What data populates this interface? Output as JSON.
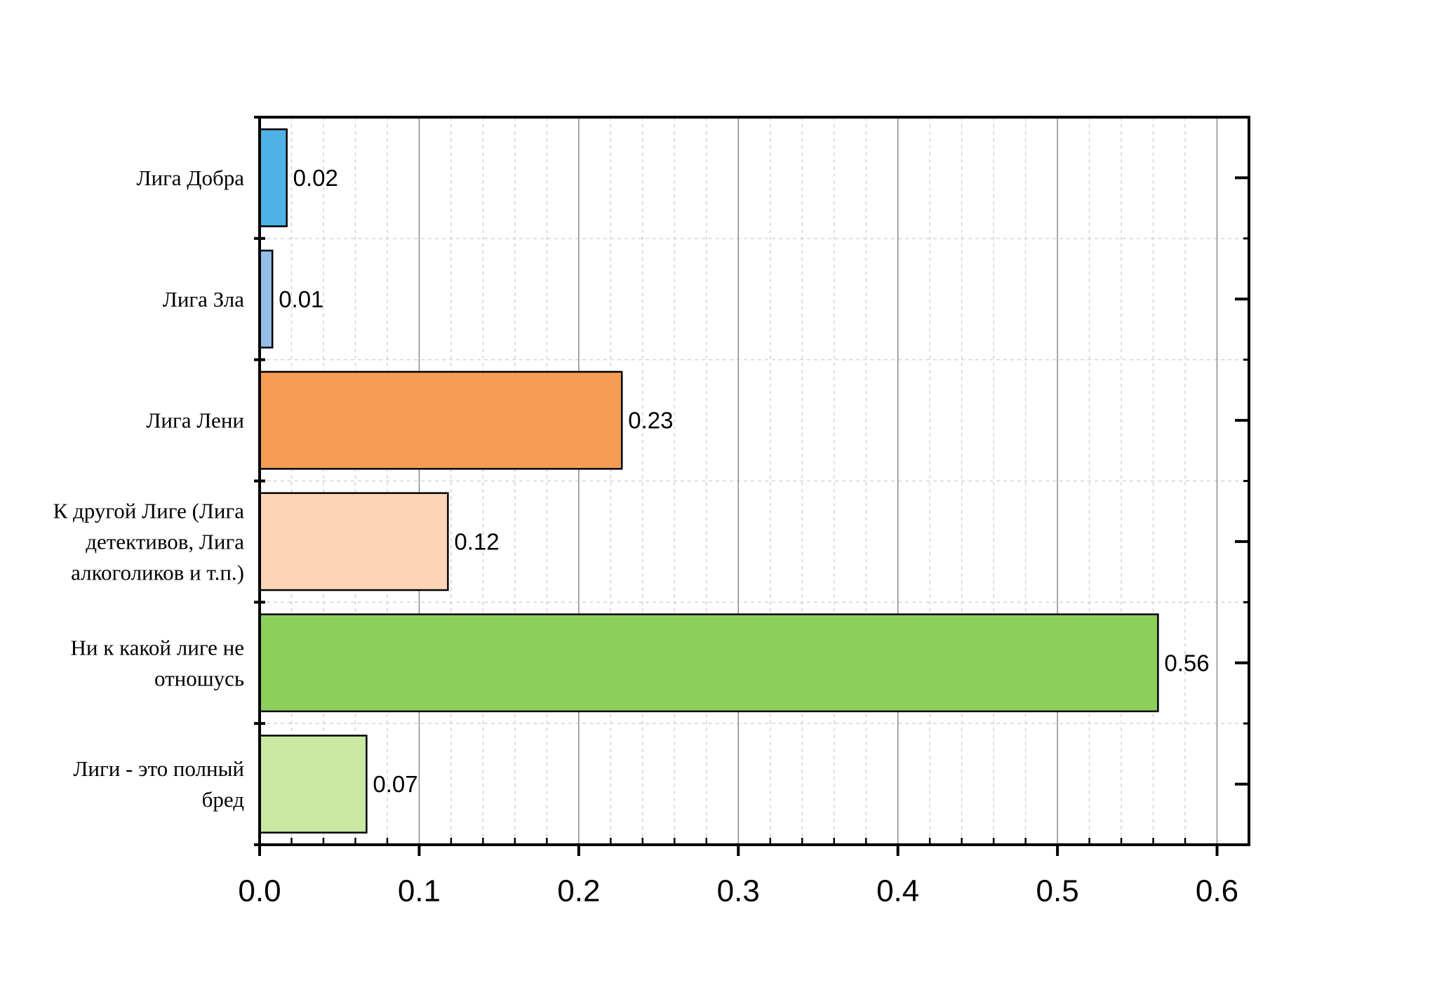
{
  "chart_data": {
    "type": "bar",
    "orientation": "horizontal",
    "categories": [
      [
        "Лига Добра"
      ],
      [
        "Лига Зла"
      ],
      [
        "Лига Лени"
      ],
      [
        "К другой Лиге (Лига",
        "детективов, Лига",
        "алкоголиков и т.п.)"
      ],
      [
        "Ни к какой лиге не",
        "отношусь"
      ],
      [
        "Лиги - это полный",
        "бред"
      ]
    ],
    "values": [
      0.017,
      0.008,
      0.227,
      0.118,
      0.563,
      0.067
    ],
    "value_labels": [
      "0.02",
      "0.01",
      "0.23",
      "0.12",
      "0.56",
      "0.07"
    ],
    "colors": [
      "#4db3e6",
      "#95bde8",
      "#f59d55",
      "#fdd5b6",
      "#8cd05b",
      "#c9e8a2"
    ],
    "xlim": [
      0,
      0.62
    ],
    "xticks": [
      0.0,
      0.1,
      0.2,
      0.3,
      0.4,
      0.5,
      0.6
    ],
    "xtick_labels": [
      "0.0",
      "0.1",
      "0.2",
      "0.3",
      "0.4",
      "0.5",
      "0.6"
    ],
    "minor_step": 0.02,
    "grid": true,
    "title": "",
    "xlabel": "",
    "ylabel": ""
  }
}
